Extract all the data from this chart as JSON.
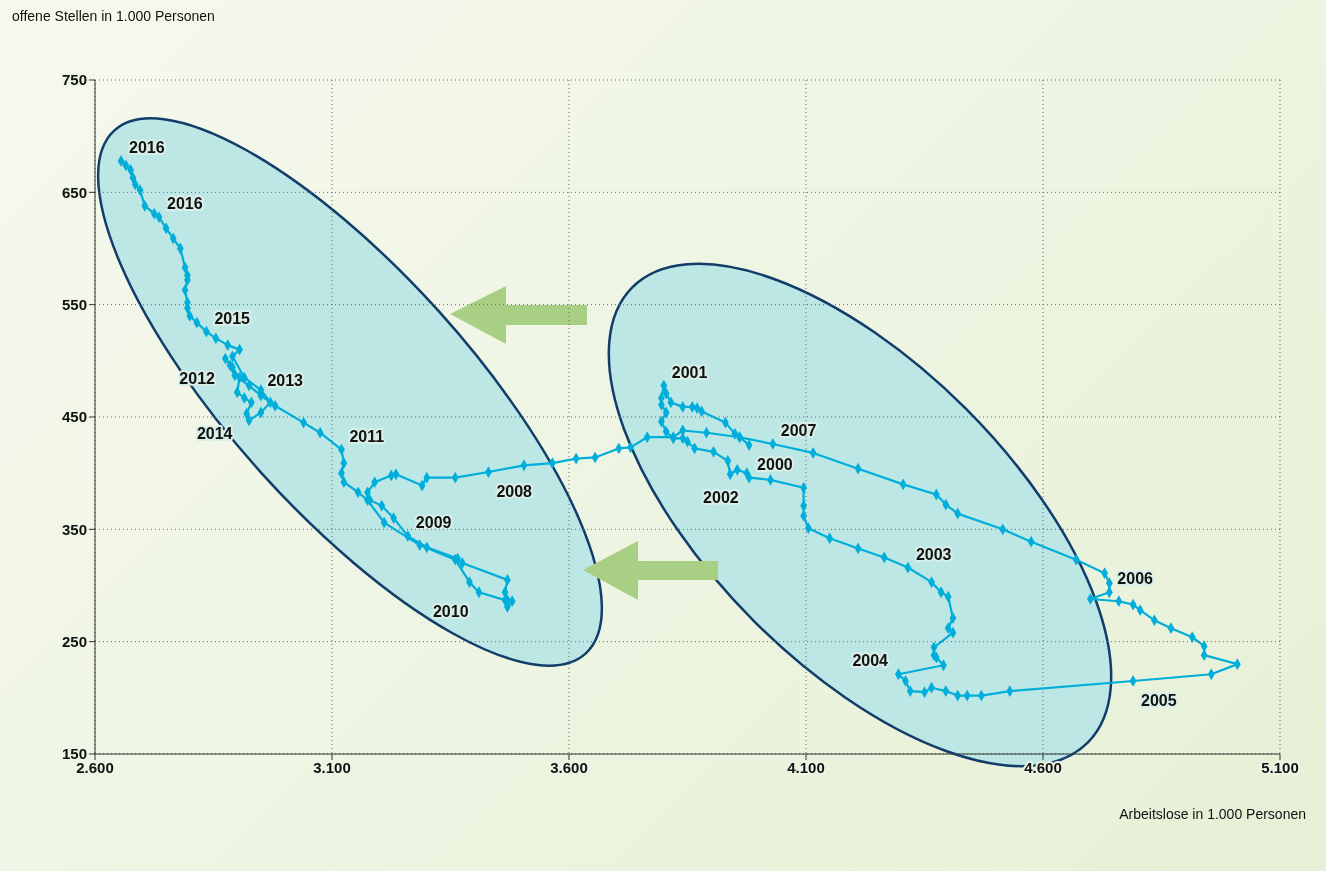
{
  "chart_data": {
    "type": "line",
    "marker": "diamond",
    "grid": true,
    "legend": false,
    "xlabel": "Arbeitslose in 1.000 Personen",
    "ylabel": "offene Stellen in 1.000 Personen",
    "xlim": [
      2600,
      5100
    ],
    "ylim": [
      150,
      750
    ],
    "xticks": [
      {
        "value": 2600,
        "label": "2.600"
      },
      {
        "value": 3100,
        "label": "3.100"
      },
      {
        "value": 3600,
        "label": "3.600"
      },
      {
        "value": 4100,
        "label": "4.100"
      },
      {
        "value": 4600,
        "label": "4.600"
      },
      {
        "value": 5100,
        "label": "5.100"
      }
    ],
    "yticks": [
      150,
      250,
      350,
      450,
      550,
      650,
      750
    ],
    "series": [
      {
        "color": "#00aedb",
        "x": [
          3980,
          3960,
          3950,
          3930,
          3880,
          3870,
          3860,
          3840,
          3815,
          3805,
          3800,
          3795,
          3795,
          3805,
          3795,
          3805,
          3820,
          3840,
          3850,
          3865,
          3905,
          3935,
          3940,
          3955,
          3975,
          3980,
          4025,
          4095,
          4095,
          4095,
          4105,
          4150,
          4210,
          4265,
          4315,
          4365,
          4385,
          4400,
          4410,
          4400,
          4410,
          4370,
          4370,
          4375,
          4390,
          4295,
          4310,
          4320,
          4350,
          4365,
          4395,
          4420,
          4440,
          4470,
          4530,
          4790,
          4955,
          5010,
          4940,
          4940,
          4915,
          4870,
          4835,
          4805,
          4790,
          4760,
          4700,
          4740,
          4740,
          4730,
          4670,
          4575,
          4515,
          4420,
          4395,
          4375,
          4305,
          4210,
          4115,
          4030,
          3960,
          3890,
          3840,
          3820,
          3765,
          3730,
          3705,
          3655,
          3615,
          3565,
          3505,
          3430,
          3360,
          3300,
          3290,
          3235,
          3225,
          3190,
          3175,
          3180,
          3205,
          3230,
          3260,
          3300,
          3365,
          3375,
          3470,
          3465,
          3470,
          3480,
          3470,
          3465,
          3410,
          3390,
          3360,
          3285,
          3210,
          3175,
          3155,
          3125,
          3120,
          3125,
          3120,
          3075,
          3040,
          2980,
          2950,
          2925,
          2895,
          2885,
          2875,
          2890,
          2905,
          2900,
          2915,
          2930,
          2920,
          2925,
          2950,
          2970,
          2950,
          2915,
          2890,
          2905,
          2880,
          2855,
          2835,
          2815,
          2800,
          2795,
          2795,
          2790,
          2795,
          2795,
          2790,
          2780,
          2765,
          2750,
          2735,
          2725,
          2705,
          2695,
          2685,
          2680,
          2675,
          2665,
          2655
        ],
        "values": [
          425,
          432,
          435,
          445,
          455,
          458,
          459,
          459,
          463,
          471,
          478,
          467,
          461,
          454,
          446,
          437,
          431,
          431,
          428,
          422,
          419,
          411,
          399,
          403,
          400,
          396,
          394,
          387,
          371,
          362,
          351,
          342,
          333,
          325,
          316,
          303,
          294,
          290,
          271,
          262,
          258,
          245,
          238,
          236,
          229,
          221,
          215,
          206,
          205,
          209,
          206,
          202,
          202,
          202,
          206,
          215,
          221,
          230,
          238,
          246,
          254,
          262,
          269,
          278,
          283,
          286,
          288,
          294,
          302,
          311,
          323,
          339,
          350,
          364,
          372,
          381,
          390,
          404,
          418,
          426,
          432,
          436,
          438,
          432,
          432,
          423,
          422,
          414,
          413,
          409,
          407,
          401,
          396,
          396,
          389,
          399,
          398,
          392,
          383,
          376,
          371,
          360,
          344,
          334,
          324,
          320,
          305,
          294,
          287,
          286,
          281,
          287,
          294,
          303,
          323,
          336,
          356,
          376,
          383,
          392,
          400,
          409,
          421,
          436,
          445,
          460,
          469,
          478,
          487,
          496,
          502,
          494,
          485,
          472,
          467,
          463,
          453,
          447,
          454,
          463,
          474,
          485,
          504,
          510,
          514,
          520,
          526,
          534,
          540,
          547,
          552,
          563,
          572,
          576,
          583,
          600,
          609,
          618,
          628,
          631,
          638,
          652,
          657,
          663,
          670,
          674,
          678
        ]
      }
    ],
    "annotations": [
      {
        "text": "2000",
        "x": 3980,
        "y": 425
      },
      {
        "text": "2001",
        "x": 3800,
        "y": 478
      },
      {
        "text": "2002",
        "x": 3980,
        "y": 396
      },
      {
        "text": "2003",
        "x": 4315,
        "y": 316
      },
      {
        "text": "2004",
        "x": 4295,
        "y": 221
      },
      {
        "text": "2005",
        "x": 4790,
        "y": 215
      },
      {
        "text": "2006",
        "x": 4740,
        "y": 294
      },
      {
        "text": "2007",
        "x": 4030,
        "y": 426
      },
      {
        "text": "2008",
        "x": 3430,
        "y": 401
      },
      {
        "text": "2009",
        "x": 3260,
        "y": 344
      },
      {
        "text": "2010",
        "x": 3410,
        "y": 294
      },
      {
        "text": "2011",
        "x": 3120,
        "y": 421
      },
      {
        "text": "2012",
        "x": 2875,
        "y": 502
      },
      {
        "text": "2013",
        "x": 2930,
        "y": 463
      },
      {
        "text": "2014",
        "x": 2950,
        "y": 469
      },
      {
        "text": "2015",
        "x": 2835,
        "y": 526
      },
      {
        "text": "2016",
        "x": 2735,
        "y": 628
      },
      {
        "text": "2016",
        "x": 2655,
        "y": 678
      }
    ]
  }
}
